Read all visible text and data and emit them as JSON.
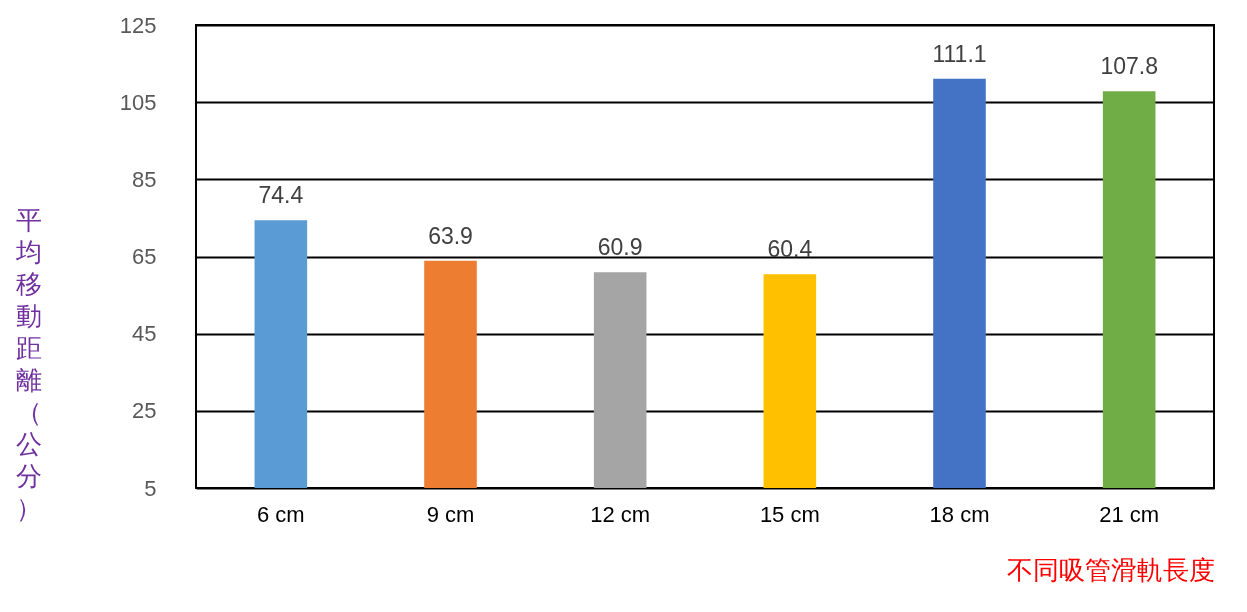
{
  "chart_data": {
    "type": "bar",
    "categories": [
      "6 cm",
      "9 cm",
      "12 cm",
      "15 cm",
      "18 cm",
      "21 cm"
    ],
    "values": [
      74.4,
      63.9,
      60.9,
      60.4,
      111.1,
      107.8
    ],
    "colors": [
      "#5b9bd5",
      "#ed7d31",
      "#a5a5a5",
      "#ffc000",
      "#4472c4",
      "#70ad47"
    ],
    "ylabel": "平均移動距離（公分）",
    "xlabel": "不同吸管滑軌長度",
    "ylim": [
      5,
      125
    ],
    "yticks": [
      5,
      25,
      45,
      65,
      85,
      105,
      125
    ],
    "grid": "y",
    "data_labels": true
  }
}
